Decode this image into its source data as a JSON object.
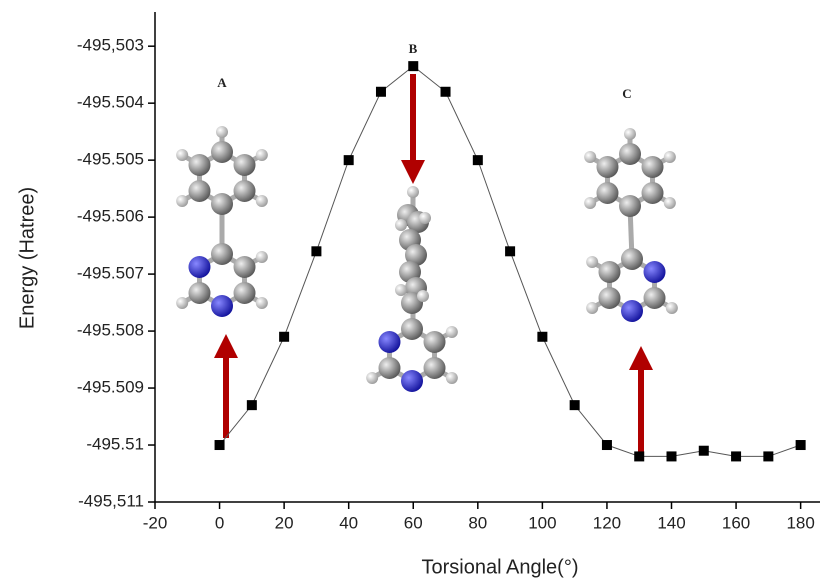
{
  "chart_data": {
    "type": "line",
    "x_label": "Torsional Angle(°)",
    "y_label": "Energy (Hatree)",
    "annotations": [
      "A",
      "B",
      "C"
    ],
    "x": [
      0,
      10,
      20,
      30,
      40,
      50,
      60,
      70,
      80,
      90,
      100,
      110,
      120,
      130,
      140,
      150,
      160,
      170,
      180
    ],
    "series": [
      {
        "color": "#000000",
        "values": [
          -495.51,
          -495.5093,
          -495.5081,
          -495.5066,
          -495.505,
          -495.5038,
          -495.50335,
          -495.5038,
          -495.505,
          -495.5066,
          -495.5081,
          -495.5093,
          -495.51,
          -495.5102,
          -495.5102,
          -495.5101,
          -495.5102,
          -495.5102,
          -495.51
        ]
      }
    ],
    "xlim": [
      -20,
      186
    ],
    "ylim": [
      -495.511,
      -495.5024
    ],
    "xticks": [
      -20,
      0,
      20,
      40,
      60,
      80,
      100,
      120,
      140,
      160,
      180
    ],
    "yticks": [
      {
        "value": -495.511,
        "label": "-495,511"
      },
      -495.51,
      -495.509,
      -495.508,
      -495.507,
      -495.506,
      -495.505,
      -495.504,
      {
        "value": -495.503,
        "label": "-495,503"
      }
    ],
    "grid": false
  }
}
